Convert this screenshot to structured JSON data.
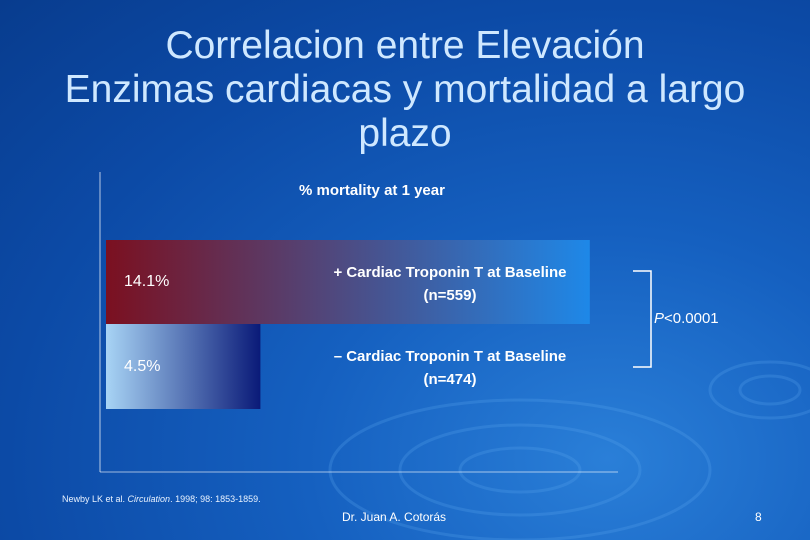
{
  "slide": {
    "title_lines": [
      "Correlacion entre Elevación",
      "Enzimas cardiacas y mortalidad a largo",
      "plazo"
    ],
    "citation_authors": "Newby LK et al. ",
    "citation_journal": "Circulation",
    "citation_rest": ". 1998; 98: 1853-1859.",
    "author": "Dr.  Juan A. Cotorás",
    "page_number": "8"
  },
  "chart_data": {
    "type": "bar",
    "orientation": "horizontal",
    "title": "% mortality at 1 year",
    "categories": [
      "+ Cardiac Troponin T at Baseline (n=559)",
      "– Cardiac Troponin T at Baseline (n=474)"
    ],
    "bars": [
      {
        "label_line1": "+ Cardiac Troponin T at Baseline",
        "label_line2": "(n=559)",
        "value": 14.1,
        "value_label": "14.1%"
      },
      {
        "label_line1": "– Cardiac Troponin T at Baseline",
        "label_line2": "(n=474)",
        "value": 4.5,
        "value_label": "4.5%"
      }
    ],
    "xlim": [
      0,
      16
    ],
    "annotation": {
      "italic": "P",
      "rest": "<0.0001"
    },
    "colors": {
      "bar1_start": "#7b1020",
      "bar1_end": "#1e88e8",
      "bar2_start": "#a8d4f5",
      "bar2_end": "#0a1a78"
    }
  }
}
